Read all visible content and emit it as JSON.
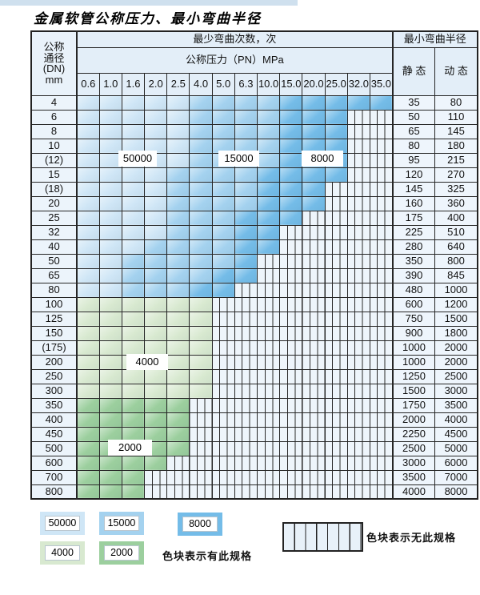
{
  "page": {
    "title": "金属软管公称压力、最小弯曲半径"
  },
  "colors": {
    "blue_50000": "#cfe6f6",
    "blue_15000": "#a4d2ef",
    "blue_8000": "#74bce8",
    "green_4000": "#d8e9d0",
    "green_2000": "#9ccf9e",
    "header_bg": "#e3eef8",
    "stripe_bg": "#eef5fb",
    "border": "#262626"
  },
  "table": {
    "corner_lines": [
      "公称",
      "通径",
      "(DN)",
      "mm"
    ],
    "bend_header": "最少弯曲次数，次",
    "pressure_header": "公称压力（PN）MPa",
    "radius_header": "最小弯曲半径",
    "static_label": "静 态",
    "dynamic_label": "动 态",
    "pressure_cols": [
      "0.6",
      "1.0",
      "1.6",
      "2.0",
      "2.5",
      "4.0",
      "5.0",
      "6.3",
      "10.0",
      "15.0",
      "20.0",
      "25.0",
      "32.0",
      "35.0"
    ],
    "rows": [
      {
        "dn": "4",
        "bands": [
          [
            "blue_50000",
            5
          ],
          [
            "blue_15000",
            4
          ],
          [
            "blue_8000",
            5
          ]
        ],
        "static": "35",
        "dynamic": "80"
      },
      {
        "dn": "6",
        "bands": [
          [
            "blue_50000",
            5
          ],
          [
            "blue_15000",
            4
          ],
          [
            "blue_8000",
            3
          ]
        ],
        "static": "50",
        "dynamic": "110"
      },
      {
        "dn": "8",
        "bands": [
          [
            "blue_50000",
            5
          ],
          [
            "blue_15000",
            4
          ],
          [
            "blue_8000",
            3
          ]
        ],
        "static": "65",
        "dynamic": "145"
      },
      {
        "dn": "10",
        "bands": [
          [
            "blue_50000",
            5
          ],
          [
            "blue_15000",
            4
          ],
          [
            "blue_8000",
            3
          ]
        ],
        "static": "80",
        "dynamic": "180"
      },
      {
        "dn": "(12)",
        "bands": [
          [
            "blue_50000",
            5
          ],
          [
            "blue_15000",
            4
          ],
          [
            "blue_8000",
            3
          ]
        ],
        "static": "95",
        "dynamic": "215"
      },
      {
        "dn": "15",
        "bands": [
          [
            "blue_50000",
            4
          ],
          [
            "blue_15000",
            4
          ],
          [
            "blue_8000",
            4
          ]
        ],
        "static": "120",
        "dynamic": "270"
      },
      {
        "dn": "(18)",
        "bands": [
          [
            "blue_50000",
            4
          ],
          [
            "blue_15000",
            4
          ],
          [
            "blue_8000",
            3
          ]
        ],
        "static": "145",
        "dynamic": "325"
      },
      {
        "dn": "20",
        "bands": [
          [
            "blue_50000",
            4
          ],
          [
            "blue_15000",
            4
          ],
          [
            "blue_8000",
            3
          ]
        ],
        "static": "160",
        "dynamic": "360"
      },
      {
        "dn": "25",
        "bands": [
          [
            "blue_50000",
            4
          ],
          [
            "blue_15000",
            3
          ],
          [
            "blue_8000",
            3
          ]
        ],
        "static": "175",
        "dynamic": "400"
      },
      {
        "dn": "32",
        "bands": [
          [
            "blue_50000",
            4
          ],
          [
            "blue_15000",
            3
          ],
          [
            "blue_8000",
            2
          ]
        ],
        "static": "225",
        "dynamic": "510"
      },
      {
        "dn": "40",
        "bands": [
          [
            "blue_50000",
            3
          ],
          [
            "blue_15000",
            4
          ],
          [
            "blue_8000",
            2
          ]
        ],
        "static": "280",
        "dynamic": "640"
      },
      {
        "dn": "50",
        "bands": [
          [
            "blue_50000",
            2
          ],
          [
            "blue_15000",
            5
          ],
          [
            "blue_8000",
            1
          ]
        ],
        "static": "350",
        "dynamic": "800"
      },
      {
        "dn": "65",
        "bands": [
          [
            "blue_50000",
            2
          ],
          [
            "blue_15000",
            4
          ],
          [
            "blue_8000",
            2
          ]
        ],
        "static": "390",
        "dynamic": "845"
      },
      {
        "dn": "80",
        "bands": [
          [
            "blue_50000",
            2
          ],
          [
            "blue_15000",
            3
          ],
          [
            "blue_8000",
            2
          ]
        ],
        "static": "480",
        "dynamic": "1000"
      },
      {
        "dn": "100",
        "bands": [
          [
            "green_4000",
            6
          ]
        ],
        "static": "600",
        "dynamic": "1200"
      },
      {
        "dn": "125",
        "bands": [
          [
            "green_4000",
            6
          ]
        ],
        "static": "750",
        "dynamic": "1500"
      },
      {
        "dn": "150",
        "bands": [
          [
            "green_4000",
            6
          ]
        ],
        "static": "900",
        "dynamic": "1800"
      },
      {
        "dn": "(175)",
        "bands": [
          [
            "green_4000",
            6
          ]
        ],
        "static": "1000",
        "dynamic": "2000"
      },
      {
        "dn": "200",
        "bands": [
          [
            "green_4000",
            6
          ]
        ],
        "static": "1000",
        "dynamic": "2000"
      },
      {
        "dn": "250",
        "bands": [
          [
            "green_4000",
            6
          ]
        ],
        "static": "1250",
        "dynamic": "2500"
      },
      {
        "dn": "300",
        "bands": [
          [
            "green_4000",
            6
          ]
        ],
        "static": "1500",
        "dynamic": "3000"
      },
      {
        "dn": "350",
        "bands": [
          [
            "green_2000",
            5
          ]
        ],
        "static": "1750",
        "dynamic": "3500"
      },
      {
        "dn": "400",
        "bands": [
          [
            "green_2000",
            5
          ]
        ],
        "static": "2000",
        "dynamic": "4000"
      },
      {
        "dn": "450",
        "bands": [
          [
            "green_2000",
            5
          ]
        ],
        "static": "2250",
        "dynamic": "4500"
      },
      {
        "dn": "500",
        "bands": [
          [
            "green_2000",
            5
          ]
        ],
        "static": "2500",
        "dynamic": "5000"
      },
      {
        "dn": "600",
        "bands": [
          [
            "green_2000",
            4
          ]
        ],
        "static": "3000",
        "dynamic": "6000"
      },
      {
        "dn": "700",
        "bands": [
          [
            "green_2000",
            3
          ]
        ],
        "static": "3500",
        "dynamic": "7000"
      },
      {
        "dn": "800",
        "bands": [
          [
            "green_2000",
            3
          ]
        ],
        "static": "4000",
        "dynamic": "8000"
      }
    ]
  },
  "overlay_labels": [
    {
      "text": "50000",
      "key": "lbl-50000"
    },
    {
      "text": "15000",
      "key": "lbl-15000"
    },
    {
      "text": "8000",
      "key": "lbl-8000"
    },
    {
      "text": "4000",
      "key": "lbl-4000"
    },
    {
      "text": "2000",
      "key": "lbl-2000"
    }
  ],
  "legend": {
    "items": [
      {
        "value": "50000",
        "color_key": "blue_50000"
      },
      {
        "value": "15000",
        "color_key": "blue_15000"
      },
      {
        "value": "8000",
        "color_key": "blue_8000"
      },
      {
        "value": "4000",
        "color_key": "green_4000"
      },
      {
        "value": "2000",
        "color_key": "green_2000"
      }
    ],
    "available_note": "色块表示有此规格",
    "unavailable_note": "色块表示无此规格"
  }
}
